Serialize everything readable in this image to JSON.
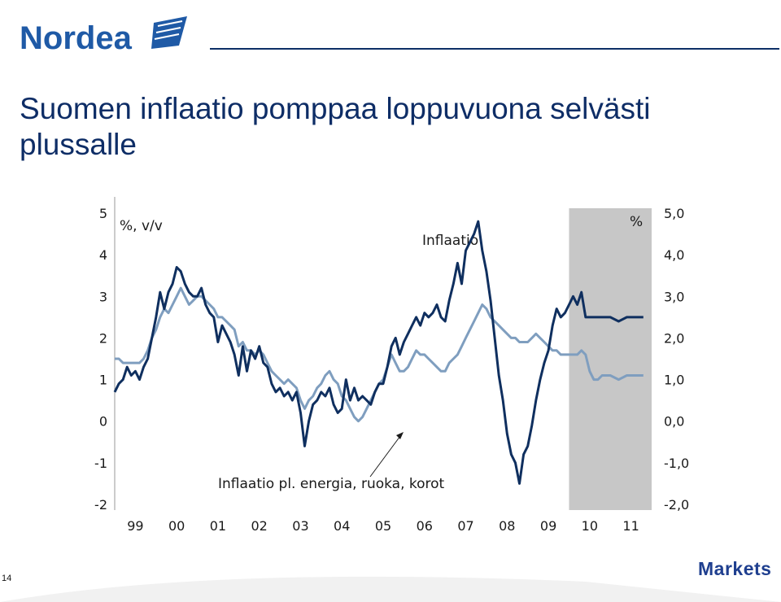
{
  "header": {
    "brand": "Nordea"
  },
  "title": "Suomen inflaatio pomppaa loppuvuona selvästi plussalle",
  "footer": {
    "page_number": "14",
    "section": "Markets"
  },
  "colors": {
    "brand_navy": "#0d2f66",
    "series_dark": "#0f2f5f",
    "series_light": "#7f9ebf",
    "forecast_shade": "#c7c7c7"
  },
  "chart_data": {
    "type": "line",
    "unit_label": "%, v/v",
    "right_unit_label": "%",
    "x_tick_labels": [
      "99",
      "00",
      "01",
      "02",
      "03",
      "04",
      "05",
      "06",
      "07",
      "08",
      "09",
      "10",
      "11"
    ],
    "x_range": [
      1999.0,
      2012.0
    ],
    "y_left_ticks": [
      "5",
      "4",
      "3",
      "2",
      "1",
      "0",
      "-1",
      "-2"
    ],
    "y_right_ticks": [
      "5,0",
      "4,0",
      "3,0",
      "2,0",
      "1,0",
      "0,0",
      "-1,0",
      "-2,0"
    ],
    "ylim": [
      -2,
      5
    ],
    "shaded_region": [
      2010.0,
      2012.0
    ],
    "annotations": [
      "Inflaatio",
      "Inflaatio pl. energia, ruoka, korot"
    ],
    "series": [
      {
        "name": "Inflaatio",
        "color": "#0f2f5f",
        "points": [
          [
            1999.0,
            0.7
          ],
          [
            1999.1,
            0.9
          ],
          [
            1999.2,
            1.0
          ],
          [
            1999.3,
            1.3
          ],
          [
            1999.4,
            1.1
          ],
          [
            1999.5,
            1.2
          ],
          [
            1999.6,
            1.0
          ],
          [
            1999.7,
            1.3
          ],
          [
            1999.8,
            1.5
          ],
          [
            1999.9,
            2.0
          ],
          [
            2000.0,
            2.5
          ],
          [
            2000.1,
            3.1
          ],
          [
            2000.2,
            2.7
          ],
          [
            2000.3,
            3.1
          ],
          [
            2000.4,
            3.3
          ],
          [
            2000.5,
            3.7
          ],
          [
            2000.6,
            3.6
          ],
          [
            2000.7,
            3.3
          ],
          [
            2000.8,
            3.1
          ],
          [
            2000.9,
            3.0
          ],
          [
            2001.0,
            3.0
          ],
          [
            2001.1,
            3.2
          ],
          [
            2001.2,
            2.8
          ],
          [
            2001.3,
            2.6
          ],
          [
            2001.4,
            2.5
          ],
          [
            2001.5,
            1.9
          ],
          [
            2001.6,
            2.3
          ],
          [
            2001.7,
            2.1
          ],
          [
            2001.8,
            1.9
          ],
          [
            2001.9,
            1.6
          ],
          [
            2002.0,
            1.1
          ],
          [
            2002.1,
            1.8
          ],
          [
            2002.2,
            1.2
          ],
          [
            2002.3,
            1.7
          ],
          [
            2002.4,
            1.5
          ],
          [
            2002.5,
            1.8
          ],
          [
            2002.6,
            1.4
          ],
          [
            2002.7,
            1.3
          ],
          [
            2002.8,
            0.9
          ],
          [
            2002.9,
            0.7
          ],
          [
            2003.0,
            0.8
          ],
          [
            2003.1,
            0.6
          ],
          [
            2003.2,
            0.7
          ],
          [
            2003.3,
            0.5
          ],
          [
            2003.4,
            0.7
          ],
          [
            2003.5,
            0.2
          ],
          [
            2003.6,
            -0.6
          ],
          [
            2003.7,
            0.0
          ],
          [
            2003.8,
            0.4
          ],
          [
            2003.9,
            0.5
          ],
          [
            2004.0,
            0.7
          ],
          [
            2004.1,
            0.6
          ],
          [
            2004.2,
            0.8
          ],
          [
            2004.3,
            0.4
          ],
          [
            2004.4,
            0.2
          ],
          [
            2004.5,
            0.3
          ],
          [
            2004.6,
            1.0
          ],
          [
            2004.7,
            0.5
          ],
          [
            2004.8,
            0.8
          ],
          [
            2004.9,
            0.5
          ],
          [
            2005.0,
            0.6
          ],
          [
            2005.1,
            0.5
          ],
          [
            2005.2,
            0.4
          ],
          [
            2005.3,
            0.7
          ],
          [
            2005.4,
            0.9
          ],
          [
            2005.5,
            0.9
          ],
          [
            2005.6,
            1.3
          ],
          [
            2005.7,
            1.8
          ],
          [
            2005.8,
            2.0
          ],
          [
            2005.9,
            1.6
          ],
          [
            2006.0,
            1.9
          ],
          [
            2006.1,
            2.1
          ],
          [
            2006.2,
            2.3
          ],
          [
            2006.3,
            2.5
          ],
          [
            2006.4,
            2.3
          ],
          [
            2006.5,
            2.6
          ],
          [
            2006.6,
            2.5
          ],
          [
            2006.7,
            2.6
          ],
          [
            2006.8,
            2.8
          ],
          [
            2006.9,
            2.5
          ],
          [
            2007.0,
            2.4
          ],
          [
            2007.1,
            2.9
          ],
          [
            2007.2,
            3.3
          ],
          [
            2007.3,
            3.8
          ],
          [
            2007.4,
            3.3
          ],
          [
            2007.5,
            4.1
          ],
          [
            2007.6,
            4.3
          ],
          [
            2007.7,
            4.5
          ],
          [
            2007.8,
            4.8
          ],
          [
            2007.9,
            4.1
          ],
          [
            2008.0,
            3.6
          ],
          [
            2008.1,
            2.9
          ],
          [
            2008.2,
            2.0
          ],
          [
            2008.3,
            1.1
          ],
          [
            2008.4,
            0.5
          ],
          [
            2008.5,
            -0.3
          ],
          [
            2008.6,
            -0.8
          ],
          [
            2008.7,
            -1.0
          ],
          [
            2008.8,
            -1.5
          ],
          [
            2008.9,
            -0.8
          ],
          [
            2009.0,
            -0.6
          ],
          [
            2009.1,
            -0.1
          ],
          [
            2009.2,
            0.5
          ],
          [
            2009.3,
            1.0
          ],
          [
            2009.4,
            1.4
          ],
          [
            2009.5,
            1.7
          ],
          [
            2009.6,
            2.3
          ],
          [
            2009.7,
            2.7
          ],
          [
            2009.8,
            2.5
          ],
          [
            2009.9,
            2.6
          ],
          [
            2010.0,
            2.8
          ],
          [
            2010.1,
            3.0
          ],
          [
            2010.2,
            2.8
          ],
          [
            2010.3,
            3.1
          ],
          [
            2010.4,
            2.5
          ],
          [
            2010.5,
            2.5
          ],
          [
            2010.6,
            2.5
          ],
          [
            2010.7,
            2.5
          ],
          [
            2010.8,
            2.5
          ],
          [
            2010.9,
            2.5
          ],
          [
            2011.0,
            2.5
          ],
          [
            2011.2,
            2.4
          ],
          [
            2011.4,
            2.5
          ],
          [
            2011.6,
            2.5
          ],
          [
            2011.8,
            2.5
          ]
        ]
      },
      {
        "name": "Inflaatio pl. energia, ruoka, korot",
        "color": "#7f9ebf",
        "points": [
          [
            1999.0,
            1.5
          ],
          [
            1999.1,
            1.5
          ],
          [
            1999.2,
            1.4
          ],
          [
            1999.3,
            1.4
          ],
          [
            1999.4,
            1.4
          ],
          [
            1999.5,
            1.4
          ],
          [
            1999.6,
            1.4
          ],
          [
            1999.7,
            1.5
          ],
          [
            1999.8,
            1.7
          ],
          [
            1999.9,
            2.0
          ],
          [
            2000.0,
            2.2
          ],
          [
            2000.1,
            2.5
          ],
          [
            2000.2,
            2.7
          ],
          [
            2000.3,
            2.6
          ],
          [
            2000.4,
            2.8
          ],
          [
            2000.5,
            3.0
          ],
          [
            2000.6,
            3.2
          ],
          [
            2000.7,
            3.0
          ],
          [
            2000.8,
            2.8
          ],
          [
            2000.9,
            2.9
          ],
          [
            2001.0,
            3.0
          ],
          [
            2001.1,
            3.0
          ],
          [
            2001.2,
            2.9
          ],
          [
            2001.3,
            2.8
          ],
          [
            2001.4,
            2.7
          ],
          [
            2001.5,
            2.5
          ],
          [
            2001.6,
            2.5
          ],
          [
            2001.7,
            2.4
          ],
          [
            2001.8,
            2.3
          ],
          [
            2001.9,
            2.2
          ],
          [
            2002.0,
            1.8
          ],
          [
            2002.1,
            1.9
          ],
          [
            2002.2,
            1.7
          ],
          [
            2002.3,
            1.7
          ],
          [
            2002.4,
            1.6
          ],
          [
            2002.5,
            1.7
          ],
          [
            2002.6,
            1.6
          ],
          [
            2002.7,
            1.4
          ],
          [
            2002.8,
            1.2
          ],
          [
            2002.9,
            1.1
          ],
          [
            2003.0,
            1.0
          ],
          [
            2003.1,
            0.9
          ],
          [
            2003.2,
            1.0
          ],
          [
            2003.3,
            0.9
          ],
          [
            2003.4,
            0.8
          ],
          [
            2003.5,
            0.5
          ],
          [
            2003.6,
            0.3
          ],
          [
            2003.7,
            0.5
          ],
          [
            2003.8,
            0.6
          ],
          [
            2003.9,
            0.8
          ],
          [
            2004.0,
            0.9
          ],
          [
            2004.1,
            1.1
          ],
          [
            2004.2,
            1.2
          ],
          [
            2004.3,
            1.0
          ],
          [
            2004.4,
            0.9
          ],
          [
            2004.5,
            0.6
          ],
          [
            2004.6,
            0.5
          ],
          [
            2004.7,
            0.3
          ],
          [
            2004.8,
            0.1
          ],
          [
            2004.9,
            0.0
          ],
          [
            2005.0,
            0.1
          ],
          [
            2005.1,
            0.3
          ],
          [
            2005.2,
            0.5
          ],
          [
            2005.3,
            0.7
          ],
          [
            2005.4,
            0.9
          ],
          [
            2005.5,
            1.0
          ],
          [
            2005.6,
            1.3
          ],
          [
            2005.7,
            1.6
          ],
          [
            2005.8,
            1.4
          ],
          [
            2005.9,
            1.2
          ],
          [
            2006.0,
            1.2
          ],
          [
            2006.1,
            1.3
          ],
          [
            2006.2,
            1.5
          ],
          [
            2006.3,
            1.7
          ],
          [
            2006.4,
            1.6
          ],
          [
            2006.5,
            1.6
          ],
          [
            2006.6,
            1.5
          ],
          [
            2006.7,
            1.4
          ],
          [
            2006.8,
            1.3
          ],
          [
            2006.9,
            1.2
          ],
          [
            2007.0,
            1.2
          ],
          [
            2007.1,
            1.4
          ],
          [
            2007.2,
            1.5
          ],
          [
            2007.3,
            1.6
          ],
          [
            2007.4,
            1.8
          ],
          [
            2007.5,
            2.0
          ],
          [
            2007.6,
            2.2
          ],
          [
            2007.7,
            2.4
          ],
          [
            2007.8,
            2.6
          ],
          [
            2007.9,
            2.8
          ],
          [
            2008.0,
            2.7
          ],
          [
            2008.1,
            2.5
          ],
          [
            2008.2,
            2.4
          ],
          [
            2008.3,
            2.3
          ],
          [
            2008.4,
            2.2
          ],
          [
            2008.5,
            2.1
          ],
          [
            2008.6,
            2.0
          ],
          [
            2008.7,
            2.0
          ],
          [
            2008.8,
            1.9
          ],
          [
            2008.9,
            1.9
          ],
          [
            2009.0,
            1.9
          ],
          [
            2009.1,
            2.0
          ],
          [
            2009.2,
            2.1
          ],
          [
            2009.3,
            2.0
          ],
          [
            2009.4,
            1.9
          ],
          [
            2009.5,
            1.8
          ],
          [
            2009.6,
            1.7
          ],
          [
            2009.7,
            1.7
          ],
          [
            2009.8,
            1.6
          ],
          [
            2009.9,
            1.6
          ],
          [
            2010.0,
            1.6
          ],
          [
            2010.1,
            1.6
          ],
          [
            2010.2,
            1.6
          ],
          [
            2010.3,
            1.7
          ],
          [
            2010.4,
            1.6
          ],
          [
            2010.5,
            1.2
          ],
          [
            2010.6,
            1.0
          ],
          [
            2010.7,
            1.0
          ],
          [
            2010.8,
            1.1
          ],
          [
            2010.9,
            1.1
          ],
          [
            2011.0,
            1.1
          ],
          [
            2011.2,
            1.0
          ],
          [
            2011.4,
            1.1
          ],
          [
            2011.6,
            1.1
          ],
          [
            2011.8,
            1.1
          ]
        ]
      }
    ]
  }
}
